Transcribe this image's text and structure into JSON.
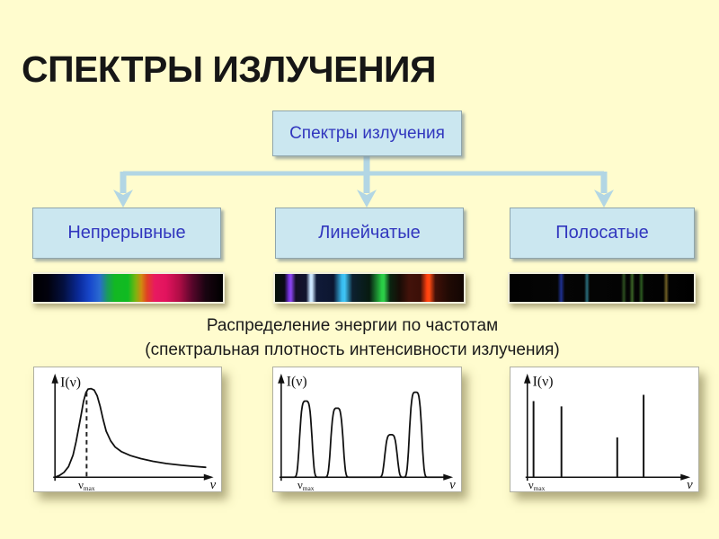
{
  "slide": {
    "title": "СПЕКТРЫ ИЗЛУЧЕНИЯ",
    "background_color": "#FFFCCE"
  },
  "flowchart": {
    "root_label": "Спектры излучения",
    "branches": [
      {
        "label": "Непрерывные"
      },
      {
        "label": "Линейчатые"
      },
      {
        "label": "Полосатые"
      }
    ],
    "box_fill": "#CBE7F0",
    "box_border": "#8FA5AC",
    "label_color": "#3136BE",
    "connector_color": "#B2D6E4"
  },
  "spectra": {
    "continuous_stops": [
      [
        "#000000",
        0
      ],
      [
        "#02020e",
        8
      ],
      [
        "#041040",
        16
      ],
      [
        "#0a2a9a",
        24
      ],
      [
        "#1848cc",
        30
      ],
      [
        "#2a6ad0",
        35
      ],
      [
        "#1a9a60",
        39
      ],
      [
        "#12b822",
        43
      ],
      [
        "#10bb22",
        50
      ],
      [
        "#7ab410",
        54
      ],
      [
        "#d08a10",
        57
      ],
      [
        "#e04024",
        60
      ],
      [
        "#e81a60",
        64
      ],
      [
        "#e2135e",
        70
      ],
      [
        "#b00d46",
        77
      ],
      [
        "#55062a",
        84
      ],
      [
        "#180410",
        91
      ],
      [
        "#000000",
        100
      ]
    ],
    "line_stops": [
      [
        "#061008",
        0
      ],
      [
        "#0a0a16",
        5
      ],
      [
        "#7b35e8",
        7.5
      ],
      [
        "#8a45f0",
        8.5
      ],
      [
        "#140f28",
        11
      ],
      [
        "#12142e",
        16.5
      ],
      [
        "#c8e4ff",
        18.7
      ],
      [
        "#cfe9ff",
        19.6
      ],
      [
        "#101a38",
        22
      ],
      [
        "#0c1630",
        31
      ],
      [
        "#38bdf0",
        35.5
      ],
      [
        "#40c4f4",
        37
      ],
      [
        "#0c2030",
        41
      ],
      [
        "#071a10",
        50
      ],
      [
        "#28cc44",
        56.5
      ],
      [
        "#2ed04a",
        57.7
      ],
      [
        "#0a2410",
        61
      ],
      [
        "#180c06",
        66
      ],
      [
        "#42120a",
        71
      ],
      [
        "#3c1008",
        77
      ],
      [
        "#ff400e",
        80.5
      ],
      [
        "#ff4a12",
        81.8
      ],
      [
        "#401008",
        85
      ],
      [
        "#200a04",
        92
      ],
      [
        "#120603",
        100
      ]
    ],
    "band_stops": [
      [
        "#020202",
        0
      ],
      [
        "#050505",
        26
      ],
      [
        "#1e3090",
        28
      ],
      [
        "#050505",
        30
      ],
      [
        "#040404",
        40.5
      ],
      [
        "#2a6e7c",
        42
      ],
      [
        "#040404",
        43.5
      ],
      [
        "#030303",
        60.5
      ],
      [
        "#2c4e20",
        62
      ],
      [
        "#030303",
        63.5
      ],
      [
        "#040404",
        65
      ],
      [
        "#3a6426",
        66.5
      ],
      [
        "#040404",
        68
      ],
      [
        "#030303",
        70
      ],
      [
        "#2c5a20",
        71.5
      ],
      [
        "#030303",
        73
      ],
      [
        "#020202",
        83.5
      ],
      [
        "#6e5e24",
        85
      ],
      [
        "#020202",
        86.5
      ],
      [
        "#000000",
        100
      ]
    ]
  },
  "caption": {
    "line1": "Распределение энергии по частотам",
    "line2": "(спектральная плотность интенсивности излучения)"
  },
  "graphs": [
    {
      "y_label": "I(ν)",
      "x_label": "ν",
      "peak_symbol": "ν",
      "peak_sub": "max"
    },
    {
      "y_label": "I(ν)",
      "x_label": "ν",
      "peak_symbol": "ν",
      "peak_sub": "max"
    },
    {
      "y_label": "I(ν)",
      "x_label": "ν",
      "peak_symbol": "ν",
      "peak_sub": "max"
    }
  ],
  "chart_data": [
    {
      "type": "line",
      "title": "Continuous spectrum: energy distribution over frequency",
      "xlabel": "ν",
      "ylabel": "I(ν)",
      "points": [
        [
          0,
          0
        ],
        [
          0.03,
          0.02
        ],
        [
          0.06,
          0.055
        ],
        [
          0.09,
          0.12
        ],
        [
          0.12,
          0.25
        ],
        [
          0.14,
          0.4
        ],
        [
          0.16,
          0.58
        ],
        [
          0.175,
          0.72
        ],
        [
          0.19,
          0.86
        ],
        [
          0.205,
          0.955
        ],
        [
          0.22,
          0.995
        ],
        [
          0.24,
          1.0
        ],
        [
          0.26,
          0.985
        ],
        [
          0.28,
          0.92
        ],
        [
          0.3,
          0.8
        ],
        [
          0.32,
          0.65
        ],
        [
          0.34,
          0.52
        ],
        [
          0.37,
          0.41
        ],
        [
          0.4,
          0.34
        ],
        [
          0.44,
          0.29
        ],
        [
          0.5,
          0.245
        ],
        [
          0.57,
          0.21
        ],
        [
          0.65,
          0.18
        ],
        [
          0.74,
          0.155
        ],
        [
          0.84,
          0.135
        ],
        [
          0.93,
          0.122
        ],
        [
          1,
          0.112
        ]
      ],
      "dashed_peak_x": 0.21,
      "peak_label_x": 0.21
    },
    {
      "type": "line",
      "title": "Line spectrum: energy distribution over frequency",
      "xlabel": "ν",
      "ylabel": "I(ν)",
      "peaks": [
        {
          "x": 0.15,
          "h": 0.86
        },
        {
          "x": 0.34,
          "h": 0.78
        },
        {
          "x": 0.67,
          "h": 0.48
        },
        {
          "x": 0.82,
          "h": 0.96
        }
      ],
      "peak_width": 0.042,
      "peak_label_x": 0.15
    },
    {
      "type": "line",
      "title": "Band spectrum: energy distribution over frequency",
      "xlabel": "ν",
      "ylabel": "I(ν)",
      "spikes": [
        [
          0.04,
          0.86
        ],
        [
          0.22,
          0.8
        ],
        [
          0.58,
          0.45
        ],
        [
          0.75,
          0.93
        ]
      ],
      "peak_label_x": 0.06
    }
  ]
}
